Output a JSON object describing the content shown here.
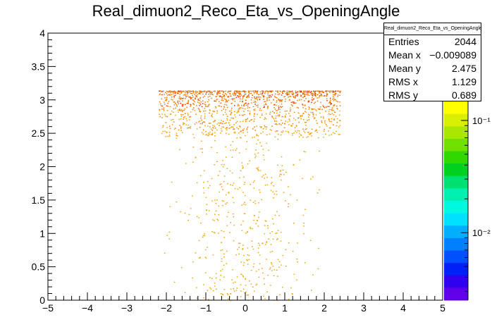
{
  "title": "Real_dimuon2_Reco_Eta_vs_OpeningAngle",
  "stats": {
    "name": "Real_dimuon2_Reco_Eta_vs_OpeningAngle",
    "rows": [
      {
        "label": "Entries",
        "value": "2044"
      },
      {
        "label": "Mean x",
        "value": "−0.009089"
      },
      {
        "label": "Mean y",
        "value": "2.475"
      },
      {
        "label": "RMS x",
        "value": "1.129"
      },
      {
        "label": "RMS y",
        "value": "0.689"
      }
    ]
  },
  "colors": {
    "frame": "#000000",
    "low_density": "#f0a000",
    "mid_density": "#f07800",
    "high_density": "#e02800"
  },
  "chart_data": {
    "type": "heatmap",
    "title": "Real_dimuon2_Reco_Eta_vs_OpeningAngle",
    "xlabel": "",
    "ylabel": "",
    "xlim": [
      -5,
      5
    ],
    "ylim": [
      0,
      4
    ],
    "x_ticks": [
      "−5",
      "−4",
      "−3",
      "−2",
      "−1",
      "0",
      "1",
      "2",
      "3",
      "4",
      "5"
    ],
    "x_tick_values": [
      -5,
      -4,
      -3,
      -2,
      -1,
      0,
      1,
      2,
      3,
      4,
      5
    ],
    "y_ticks": [
      "0",
      "0.5",
      "1",
      "1.5",
      "2",
      "2.5",
      "3",
      "3.5",
      "4"
    ],
    "y_tick_values": [
      0,
      0.5,
      1,
      1.5,
      2,
      2.5,
      3,
      3.5,
      4
    ],
    "z_scale": "log",
    "z_tick_labels": [
      "10⁻¹",
      "10⁻²"
    ],
    "z_tick_values": [
      0.1,
      0.01
    ],
    "populated_region": {
      "x": [
        -2.4,
        2.4
      ],
      "y": [
        0,
        3.14
      ]
    },
    "grid": false,
    "legend": "none"
  }
}
